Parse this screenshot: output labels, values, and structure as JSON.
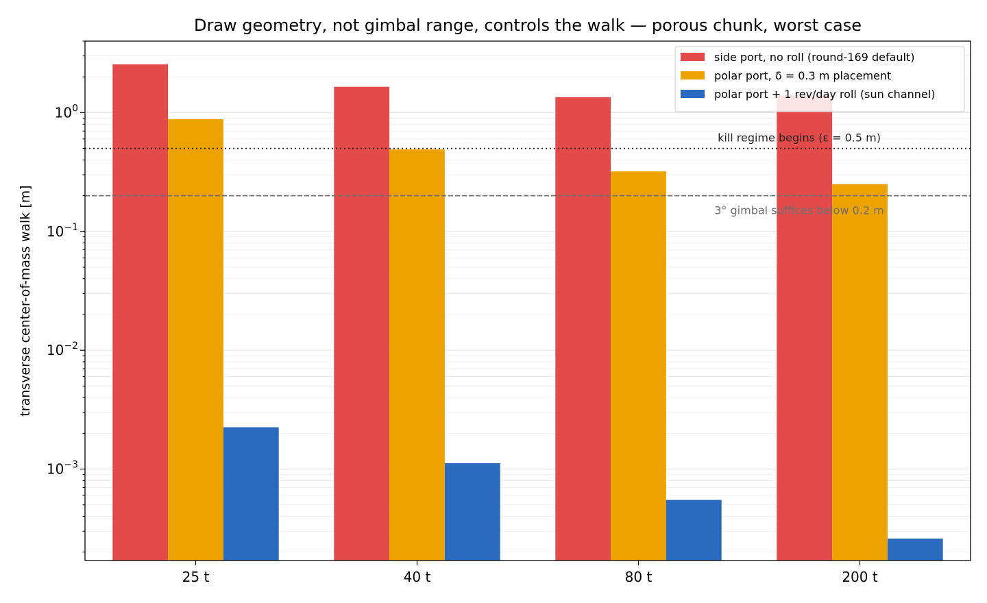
{
  "chart_data": {
    "type": "bar",
    "title": "Draw geometry, not gimbal range, controls the walk — porous chunk, worst case",
    "xlabel": "",
    "ylabel": "transverse center-of-mass walk [m]",
    "yscale": "log",
    "ylim": [
      0.00017,
      4.0
    ],
    "yticks": [
      {
        "value": 0.001,
        "mantissa": "10",
        "exponent": "−3"
      },
      {
        "value": 0.01,
        "mantissa": "10",
        "exponent": "−2"
      },
      {
        "value": 0.1,
        "mantissa": "10",
        "exponent": "−1"
      },
      {
        "value": 1,
        "mantissa": "10",
        "exponent": "0"
      }
    ],
    "grid": true,
    "legend_position": "top-right",
    "categories": [
      "25 t",
      "40 t",
      "80 t",
      "200 t"
    ],
    "series": [
      {
        "name": "side port, no roll (round-169 default)",
        "color": "#e34a4a",
        "values": [
          2.55,
          1.65,
          1.35,
          1.4
        ]
      },
      {
        "name": "polar port, δ = 0.3 m placement",
        "color": "#eca200",
        "values": [
          0.88,
          0.49,
          0.32,
          0.25
        ]
      },
      {
        "name": "polar port + 1 rev/day roll (sun channel)",
        "color": "#2a6abf",
        "values": [
          0.00225,
          0.00112,
          0.00055,
          0.00026
        ]
      }
    ],
    "reference_lines": [
      {
        "value": 0.5,
        "label": "kill regime begins (ε = 0.5 m)",
        "style": "dotted",
        "color": "#222222"
      },
      {
        "value": 0.2,
        "label": "3° gimbal suffices below 0.2 m",
        "style": "dashed",
        "color": "#707070"
      }
    ]
  }
}
